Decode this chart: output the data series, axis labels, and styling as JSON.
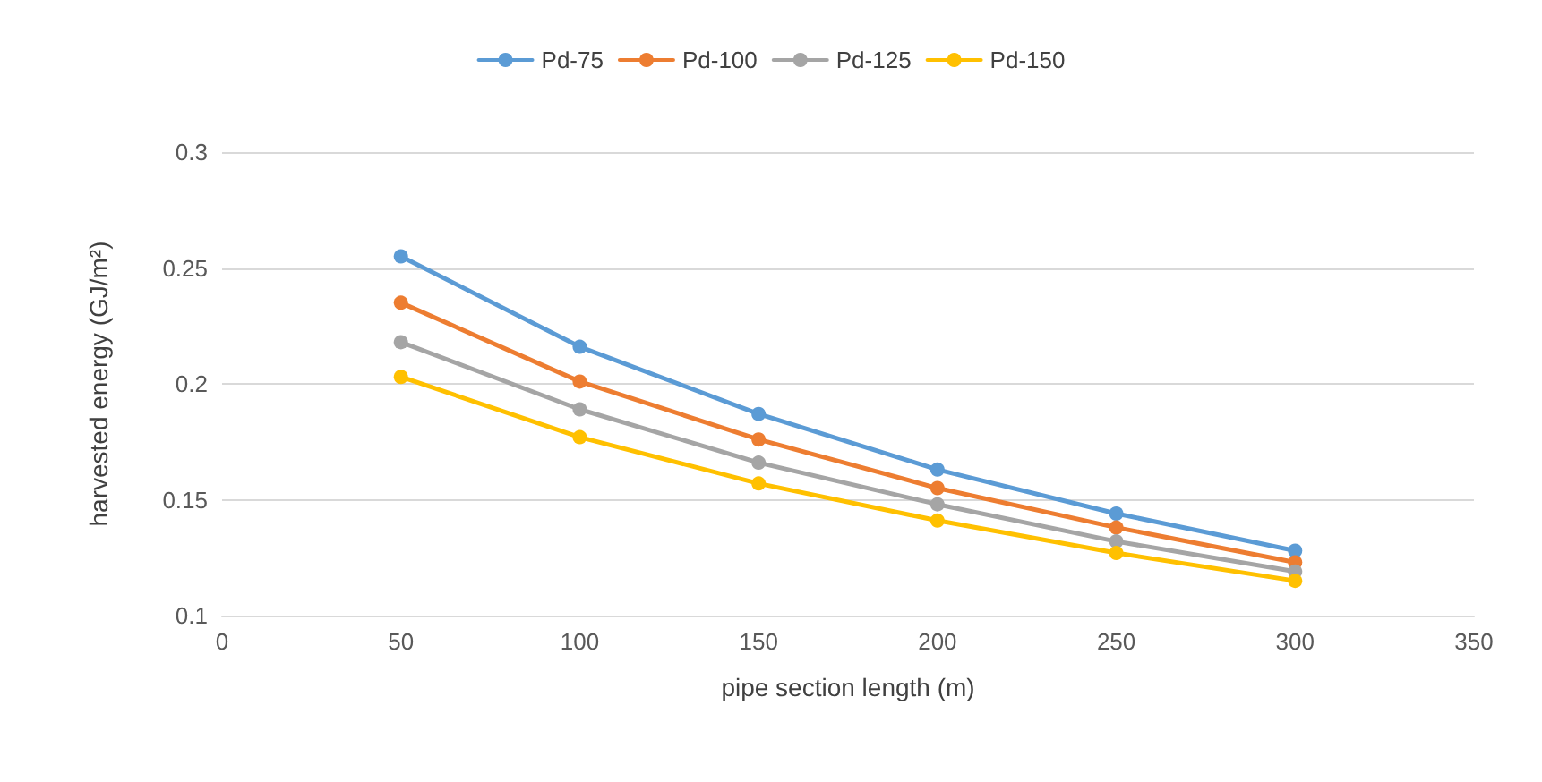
{
  "chart_data": {
    "type": "line",
    "xlabel": "pipe section length (m)",
    "ylabel": "harvested energy (GJ/m²)",
    "x": [
      50,
      100,
      150,
      200,
      250,
      300
    ],
    "series": [
      {
        "name": "Pd-75",
        "color": "#5b9bd5",
        "values": [
          0.255,
          0.216,
          0.187,
          0.163,
          0.144,
          0.128
        ]
      },
      {
        "name": "Pd-100",
        "color": "#ed7d31",
        "values": [
          0.235,
          0.201,
          0.176,
          0.155,
          0.138,
          0.123
        ]
      },
      {
        "name": "Pd-125",
        "color": "#a5a5a5",
        "values": [
          0.218,
          0.189,
          0.166,
          0.148,
          0.132,
          0.119
        ]
      },
      {
        "name": "Pd-150",
        "color": "#ffc000",
        "values": [
          0.203,
          0.177,
          0.157,
          0.141,
          0.127,
          0.115
        ]
      }
    ],
    "xlim": [
      0,
      350
    ],
    "xticks": [
      0,
      50,
      100,
      150,
      200,
      250,
      300,
      350
    ],
    "ylim": [
      0.1,
      0.3
    ],
    "yticks": [
      0.1,
      0.15,
      0.2,
      0.25,
      0.3
    ],
    "grid": "y",
    "legend": "top",
    "marker": "circle",
    "line_style": "solid"
  }
}
